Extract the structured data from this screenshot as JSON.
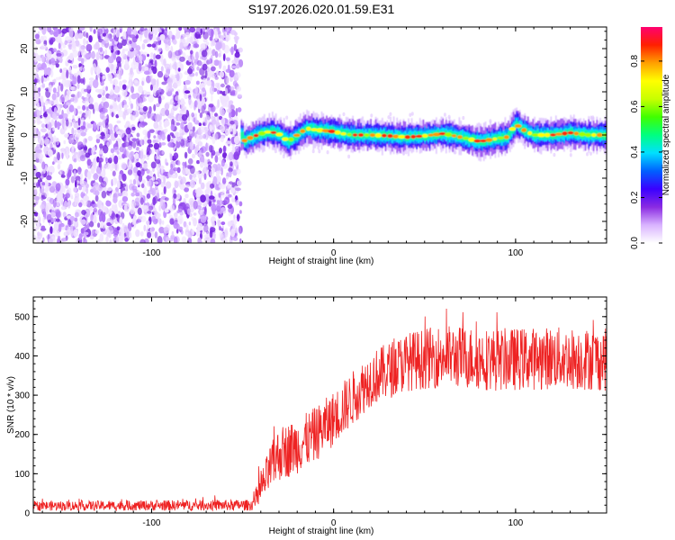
{
  "title": "S197.2026.020.01.59.E31",
  "chart_data": [
    {
      "type": "heatmap",
      "name": "spectrogram",
      "xlabel": "Height of straight line (km)",
      "ylabel": "Frequency (Hz)",
      "xlim": [
        -165,
        150
      ],
      "ylim": [
        -25,
        25
      ],
      "xticks": [
        -100,
        0,
        100
      ],
      "yticks": [
        -20,
        -10,
        0,
        10,
        20
      ],
      "noise_region_x": [
        -165,
        -51
      ],
      "signal_start_x": -51,
      "signal_track": [
        {
          "x": -50,
          "y": -1.5
        },
        {
          "x": -45,
          "y": -0.5
        },
        {
          "x": -40,
          "y": 0.3
        },
        {
          "x": -35,
          "y": 0.8
        },
        {
          "x": -30,
          "y": 0.2
        },
        {
          "x": -25,
          "y": -1.5
        },
        {
          "x": -20,
          "y": 0
        },
        {
          "x": -15,
          "y": 1.5
        },
        {
          "x": -10,
          "y": 1.2
        },
        {
          "x": -5,
          "y": 1
        },
        {
          "x": 0,
          "y": 0.8
        },
        {
          "x": 5,
          "y": 0.3
        },
        {
          "x": 10,
          "y": 0
        },
        {
          "x": 20,
          "y": 0
        },
        {
          "x": 30,
          "y": -0.2
        },
        {
          "x": 40,
          "y": -0.5
        },
        {
          "x": 50,
          "y": -0.2
        },
        {
          "x": 60,
          "y": 0.3
        },
        {
          "x": 70,
          "y": -0.5
        },
        {
          "x": 80,
          "y": -1.5
        },
        {
          "x": 85,
          "y": -1.2
        },
        {
          "x": 90,
          "y": -0.8
        },
        {
          "x": 95,
          "y": -0.5
        },
        {
          "x": 100,
          "y": 2.5
        },
        {
          "x": 105,
          "y": 1
        },
        {
          "x": 110,
          "y": 0
        },
        {
          "x": 120,
          "y": 0
        },
        {
          "x": 130,
          "y": 0.5
        },
        {
          "x": 140,
          "y": 0
        },
        {
          "x": 150,
          "y": 0
        }
      ],
      "colorbar": {
        "label": "Normalized spectral amplitude",
        "range": [
          0,
          0.95
        ],
        "ticks": [
          "0.0",
          "0.2",
          "0.4",
          "0.6",
          "0.8"
        ],
        "tick_values": [
          0,
          0.2,
          0.4,
          0.6,
          0.8
        ],
        "colors": [
          "#ffffff",
          "#d9b3ff",
          "#8a2be2",
          "#3a00ff",
          "#0060ff",
          "#00e0ff",
          "#00ff80",
          "#40ff00",
          "#c8ff00",
          "#ffff00",
          "#ffa000",
          "#ff2000",
          "#ff0070"
        ]
      }
    },
    {
      "type": "line",
      "name": "snr",
      "xlabel": "Height of straight line (km)",
      "ylabel": "SNR (10 * v/v)",
      "xlim": [
        -165,
        150
      ],
      "ylim": [
        0,
        550
      ],
      "xticks": [
        -100,
        0,
        100
      ],
      "yticks": [
        0,
        100,
        200,
        300,
        400,
        500
      ],
      "color": "#ee2222",
      "envelope": [
        {
          "x": -165,
          "mean": 18,
          "spread": 12
        },
        {
          "x": -45,
          "mean": 20,
          "spread": 14
        },
        {
          "x": -40,
          "mean": 60,
          "spread": 40
        },
        {
          "x": -35,
          "mean": 110,
          "spread": 60
        },
        {
          "x": -30,
          "mean": 150,
          "spread": 70
        },
        {
          "x": -20,
          "mean": 170,
          "spread": 70
        },
        {
          "x": -10,
          "mean": 200,
          "spread": 70
        },
        {
          "x": 0,
          "mean": 240,
          "spread": 70
        },
        {
          "x": 10,
          "mean": 290,
          "spread": 70
        },
        {
          "x": 20,
          "mean": 340,
          "spread": 70
        },
        {
          "x": 40,
          "mean": 385,
          "spread": 75
        },
        {
          "x": 60,
          "mean": 400,
          "spread": 80
        },
        {
          "x": 90,
          "mean": 390,
          "spread": 80
        },
        {
          "x": 120,
          "mean": 395,
          "spread": 80
        },
        {
          "x": 150,
          "mean": 390,
          "spread": 80
        }
      ]
    }
  ]
}
